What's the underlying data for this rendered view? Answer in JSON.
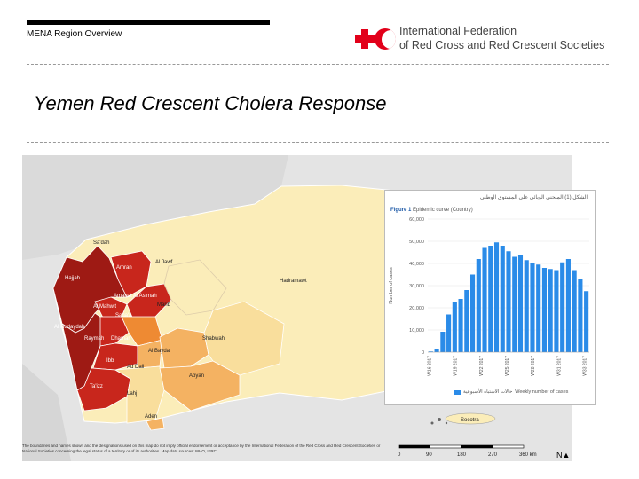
{
  "header": {
    "region": "MENA Region Overview",
    "logo_line1": "International Federation",
    "logo_line2": "of Red Cross and Red Crescent Societies"
  },
  "title": "Yemen Red Crescent Cholera Response",
  "map": {
    "labels": {
      "sadah": "Sa'dah",
      "al_jawf": "Al Jawf",
      "hadramawt": "Hadramawt",
      "hajjah": "Hajjah",
      "amran": "Amran",
      "amanat": "Amanat Al Asimah",
      "marib": "Marib",
      "al_mahwit": "Al Mahwit",
      "sanaa": "Sana'a",
      "al_hudaydah": "Al Hudaydah",
      "raymah": "Raymah",
      "dhamar": "Dhamar",
      "shabwah": "Shabwah",
      "al_bayda": "Al Bayda",
      "ibb": "Ibb",
      "ad_dali": "Ad Dali",
      "abyan": "Abyan",
      "taizz": "Ta'izz",
      "lahj": "Lahj",
      "aden": "Aden",
      "socotra": "Socotra"
    },
    "credit": "The boundaries and names shown and the designations used on this map do not imply official endorsement or acceptance by the International Federation of the Red Cross and Red Crescent Societies or National Societies concerning the legal status of a territory or of its authorities. Map data sources: WHO, IFRC",
    "scale": [
      "0",
      "90",
      "180",
      "270",
      "360 km"
    ],
    "north": "N"
  },
  "colors": {
    "accent": "#e2001a",
    "bar": "#2a8be8",
    "region_dark": "#9e1a14",
    "region_red": "#c8261c",
    "region_orange": "#ee8a33",
    "region_light_orange": "#f4b262",
    "region_pale": "#f9de9c",
    "region_lightest": "#fbedb9",
    "sea": "#e4e4e4"
  },
  "chart_data": {
    "type": "bar",
    "title_ar": "الشكل (1) المنحنى الوبائي على المستوى الوطني",
    "figure_label": "Figure 1",
    "subtitle": "Epidemic curve (Country)",
    "ylabel": "Number of cases",
    "ylim": [
      0,
      60000
    ],
    "yticks": [
      "0",
      "10,000",
      "20,000",
      "30,000",
      "40,000",
      "50,000",
      "60,000"
    ],
    "xticks": [
      "W16 2017",
      "W19 2017",
      "W22 2017",
      "W25 2017",
      "W28 2017",
      "W31 2017",
      "W33 2017"
    ],
    "values": [
      300,
      1200,
      9200,
      17000,
      22500,
      24000,
      28000,
      35000,
      42000,
      47000,
      48000,
      49500,
      48000,
      45500,
      43000,
      44000,
      41500,
      40000,
      39500,
      38000,
      37500,
      37000,
      40500,
      42000,
      37000,
      33000,
      27500
    ],
    "legend_ar": "حالات الاشتباه الأسبوعية",
    "legend": "Weekly number of cases"
  }
}
